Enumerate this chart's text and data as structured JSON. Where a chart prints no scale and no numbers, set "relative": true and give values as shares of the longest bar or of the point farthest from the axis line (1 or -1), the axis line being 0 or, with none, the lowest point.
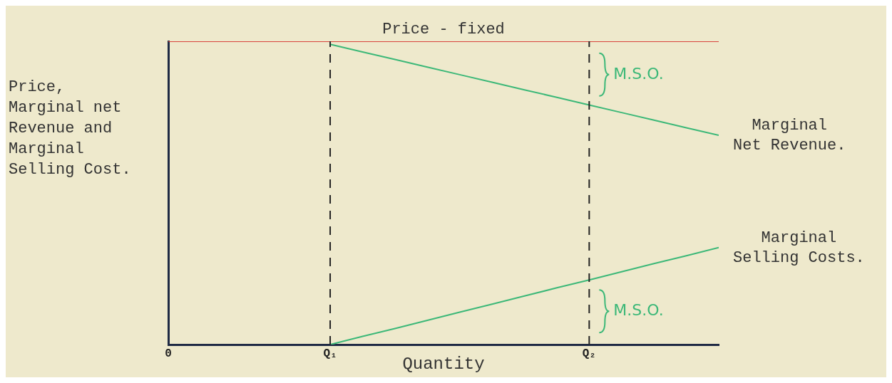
{
  "chart_data": {
    "type": "line",
    "relative": true,
    "ylabel": "Price, Marginal net Revenue and Marginal Selling Cost.",
    "xlabel": "Quantity",
    "categories": [
      "0",
      null,
      null,
      null,
      null,
      "Q₁",
      null,
      null,
      null,
      null,
      null,
      null,
      null,
      "Q₂",
      null,
      null,
      null,
      null
    ],
    "series": [
      {
        "name": "Price - fixed",
        "color": "#d9443c",
        "values": [
          1,
          1,
          1,
          1,
          1,
          1,
          1,
          1,
          1,
          1,
          1,
          1,
          1,
          1,
          1,
          1,
          1,
          1
        ]
      },
      {
        "name": "Marginal Net Revenue.",
        "color": "#3cb878",
        "values": [
          null,
          null,
          null,
          null,
          null,
          0.99,
          0.965,
          0.94,
          0.915,
          0.89,
          0.865,
          0.84,
          0.815,
          0.79,
          0.765,
          0.74,
          0.715,
          0.69
        ]
      },
      {
        "name": "Marginal Selling Costs.",
        "color": "#3cb878",
        "values": [
          null,
          null,
          null,
          null,
          null,
          0,
          0.027,
          0.053,
          0.08,
          0.107,
          0.133,
          0.16,
          0.187,
          0.213,
          0.24,
          0.267,
          0.293,
          0.32
        ]
      }
    ],
    "ref_lines": [
      {
        "axis": "x",
        "value": "Q₁",
        "line_style": "dashed",
        "color": "#222222"
      },
      {
        "axis": "x",
        "value": "Q₂",
        "line_style": "dashed",
        "color": "#222222"
      }
    ],
    "annotations": [
      {
        "text": "M.S.O.",
        "x": "Q₂",
        "y": 0.89
      },
      {
        "text": "M.S.O.",
        "x": "Q₂",
        "y": 0.11
      }
    ],
    "legend": false,
    "grid": false,
    "marker": "none",
    "line_style": "solid"
  }
}
